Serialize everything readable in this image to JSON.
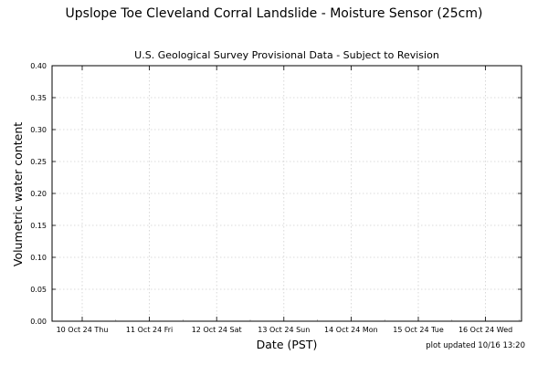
{
  "chart_data": {
    "type": "line",
    "title": "Upslope Toe Cleveland Corral Landslide - Moisture Sensor (25cm)",
    "subtitle": "U.S. Geological Survey Provisional Data - Subject to Revision",
    "xlabel": "Date (PST)",
    "ylabel": "Volumetric water content",
    "ylim": [
      0,
      0.4
    ],
    "y_ticks": [
      "0.00",
      "0.05",
      "0.10",
      "0.15",
      "0.20",
      "0.25",
      "0.30",
      "0.35",
      "0.40"
    ],
    "x_ticks": [
      "10 Oct 24 Thu",
      "11 Oct 24 Fri",
      "12 Oct 24 Sat",
      "13 Oct 24 Sun",
      "14 Oct 24 Mon",
      "15 Oct 24 Tue",
      "16 Oct 24 Wed"
    ],
    "grid": true,
    "series": [],
    "footnote": "plot updated 10/16 13:20"
  }
}
